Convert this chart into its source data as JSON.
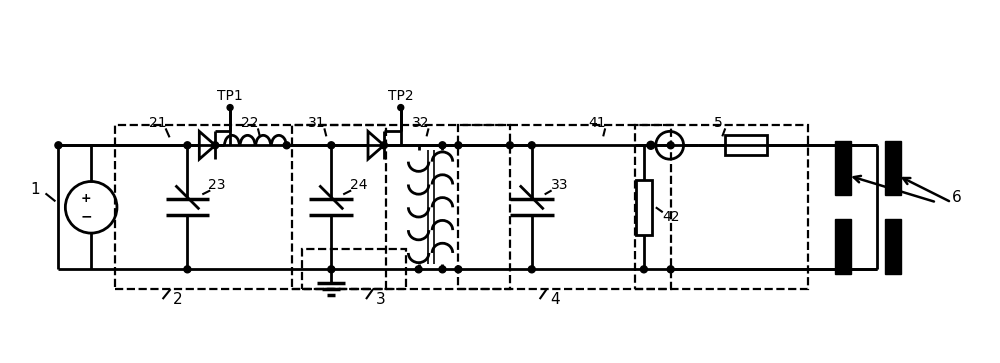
{
  "bg_color": "#ffffff",
  "line_color": "#000000",
  "lw": 2.0,
  "dlw": 1.6,
  "fig_width": 10.0,
  "fig_height": 3.63
}
